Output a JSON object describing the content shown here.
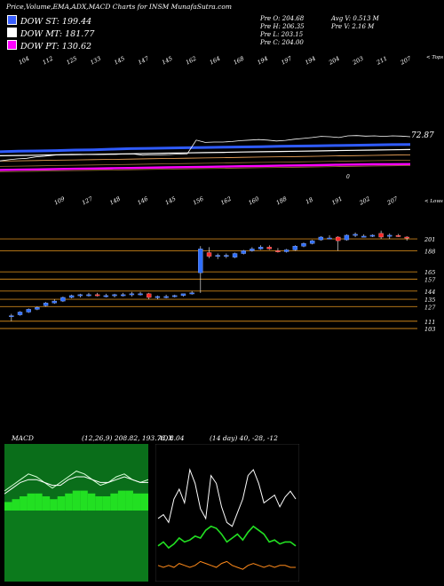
{
  "header": {
    "title": "Price,Volume,EMA,ADX,MACD Charts for INSM MunafaSutra.com"
  },
  "legend": [
    {
      "label": "DOW ST: 199.44",
      "color": "#3a5fff"
    },
    {
      "label": "DOW MT: 181.77",
      "color": "#ffffff"
    },
    {
      "label": "DOW PT: 130.62",
      "color": "#ff00ff"
    }
  ],
  "stats": {
    "prev_open": "Pre   O: 204.68",
    "prev_high": "Pre   H: 206.35",
    "prev_low": "Pre   L: 203.15",
    "prev_close": "Pre   C: 204.00",
    "avg_vol": "Avg V: 0.513  M",
    "prev_vol": "Pre   V: 2.16   M"
  },
  "colors": {
    "bull": "#2f6fff",
    "bear": "#ff2a2a",
    "ema_short": "#2f5bff",
    "ema_mid": "#ffffff",
    "ema_long": "#ff00ff",
    "level_line": "#c8821a",
    "macd_bg": "#0a6e1a",
    "macd_hist": "#22e022",
    "adx_line": "#ffffff",
    "di_plus": "#22e022",
    "di_minus": "#ff8a1a"
  },
  "chart_data": [
    {
      "type": "line",
      "title": "EMA",
      "top_labels": [
        "104",
        "112",
        "125",
        "133",
        "145",
        "147",
        "145",
        "162",
        "164",
        "168",
        "194",
        "197",
        "194",
        "204",
        "203",
        "211",
        "207"
      ],
      "top_corner": "< Tops",
      "value_label": "72.87",
      "marker": "0",
      "series": [
        {
          "name": "DOW ST",
          "values": [
            174,
            176,
            177,
            178,
            180,
            181,
            183,
            185,
            186,
            187,
            188,
            189,
            190,
            191,
            192,
            193,
            194,
            195,
            196,
            197,
            198,
            199,
            199.44
          ]
        },
        {
          "name": "DOW MT",
          "values": [
            160,
            161,
            162,
            163,
            164,
            165,
            166,
            167,
            168,
            169,
            170,
            171,
            172,
            173,
            174,
            175,
            176,
            177,
            178,
            179,
            180,
            181,
            181.77
          ]
        },
        {
          "name": "DOW PT",
          "values": [
            110,
            111,
            112,
            113,
            114,
            115,
            116,
            117,
            118,
            119,
            120,
            121,
            122,
            123,
            124,
            125,
            126,
            127,
            128,
            129,
            130,
            130.3,
            130.62
          ]
        }
      ]
    },
    {
      "type": "candlestick",
      "title": "Price",
      "bottom_labels": [
        "109",
        "127",
        "148",
        "146",
        "145",
        "156",
        "162",
        "160",
        "188",
        "18",
        "191",
        "202",
        "207"
      ],
      "bottom_corner": "< Lows",
      "price_levels": [
        "201",
        "188",
        "165",
        "157",
        "144",
        "135",
        "127",
        "111",
        "103"
      ],
      "candles": [
        {
          "o": 116,
          "h": 119,
          "l": 111,
          "c": 117
        },
        {
          "o": 118,
          "h": 122,
          "l": 117,
          "c": 121
        },
        {
          "o": 121,
          "h": 125,
          "l": 120,
          "c": 124
        },
        {
          "o": 124,
          "h": 127,
          "l": 123,
          "c": 126
        },
        {
          "o": 128,
          "h": 132,
          "l": 127,
          "c": 131
        },
        {
          "o": 131,
          "h": 135,
          "l": 130,
          "c": 133
        },
        {
          "o": 133,
          "h": 138,
          "l": 132,
          "c": 137
        },
        {
          "o": 137,
          "h": 140,
          "l": 136,
          "c": 139
        },
        {
          "o": 139,
          "h": 141,
          "l": 137,
          "c": 140
        },
        {
          "o": 140,
          "h": 142,
          "l": 138,
          "c": 140
        },
        {
          "o": 140,
          "h": 142,
          "l": 138,
          "c": 139
        },
        {
          "o": 139,
          "h": 141,
          "l": 137,
          "c": 139
        },
        {
          "o": 139,
          "h": 141,
          "l": 137,
          "c": 140
        },
        {
          "o": 140,
          "h": 142,
          "l": 138,
          "c": 140
        },
        {
          "o": 140,
          "h": 143,
          "l": 138,
          "c": 141
        },
        {
          "o": 141,
          "h": 143,
          "l": 139,
          "c": 141
        },
        {
          "o": 141,
          "h": 142,
          "l": 135,
          "c": 137
        },
        {
          "o": 137,
          "h": 139,
          "l": 135,
          "c": 138
        },
        {
          "o": 138,
          "h": 140,
          "l": 136,
          "c": 138
        },
        {
          "o": 138,
          "h": 140,
          "l": 137,
          "c": 139
        },
        {
          "o": 139,
          "h": 141,
          "l": 138,
          "c": 141
        },
        {
          "o": 141,
          "h": 144,
          "l": 140,
          "c": 142
        },
        {
          "o": 164,
          "h": 193,
          "l": 142,
          "c": 190
        },
        {
          "o": 186,
          "h": 192,
          "l": 180,
          "c": 182
        },
        {
          "o": 182,
          "h": 185,
          "l": 179,
          "c": 183
        },
        {
          "o": 183,
          "h": 185,
          "l": 180,
          "c": 183
        },
        {
          "o": 181,
          "h": 186,
          "l": 180,
          "c": 185
        },
        {
          "o": 185,
          "h": 189,
          "l": 184,
          "c": 188
        },
        {
          "o": 188,
          "h": 192,
          "l": 187,
          "c": 190
        },
        {
          "o": 190,
          "h": 194,
          "l": 189,
          "c": 192
        },
        {
          "o": 192,
          "h": 194,
          "l": 189,
          "c": 190
        },
        {
          "o": 188,
          "h": 191,
          "l": 186,
          "c": 187
        },
        {
          "o": 187,
          "h": 190,
          "l": 186,
          "c": 189
        },
        {
          "o": 189,
          "h": 194,
          "l": 188,
          "c": 193
        },
        {
          "o": 193,
          "h": 197,
          "l": 192,
          "c": 196
        },
        {
          "o": 196,
          "h": 200,
          "l": 195,
          "c": 199
        },
        {
          "o": 200,
          "h": 204,
          "l": 199,
          "c": 203
        },
        {
          "o": 202,
          "h": 205,
          "l": 201,
          "c": 202
        },
        {
          "o": 203,
          "h": 204,
          "l": 188,
          "c": 199
        },
        {
          "o": 200,
          "h": 206,
          "l": 199,
          "c": 205
        },
        {
          "o": 205,
          "h": 208,
          "l": 203,
          "c": 206
        },
        {
          "o": 204,
          "h": 206,
          "l": 203,
          "c": 204
        },
        {
          "o": 204,
          "h": 206,
          "l": 203,
          "c": 205
        },
        {
          "o": 207,
          "h": 210,
          "l": 201,
          "c": 203
        },
        {
          "o": 205,
          "h": 207,
          "l": 201,
          "c": 205
        },
        {
          "o": 204.68,
          "h": 206.35,
          "l": 203.15,
          "c": 204.0
        },
        {
          "o": 203,
          "h": 204,
          "l": 199,
          "c": 202
        }
      ]
    },
    {
      "type": "line",
      "title": "MACD",
      "label": "MACD",
      "params": "(12,26,9) 208.82, 193.78, 8.04",
      "series": [
        {
          "name": "MACD",
          "values": [
            5,
            7,
            9,
            11,
            10,
            8,
            6,
            8,
            10,
            12,
            11,
            9,
            7,
            8,
            10,
            11,
            9,
            8,
            9
          ]
        },
        {
          "name": "Signal",
          "values": [
            4,
            6,
            8,
            9,
            9,
            8,
            7,
            7,
            9,
            10,
            10,
            9,
            8,
            8,
            9,
            10,
            9,
            8,
            8
          ]
        }
      ],
      "histogram": [
        3,
        4,
        5,
        6,
        6,
        5,
        4,
        5,
        6,
        7,
        7,
        6,
        5,
        5,
        6,
        7,
        7,
        6,
        6
      ]
    },
    {
      "type": "line",
      "title": "ADX",
      "label": "ADX",
      "params": "(14 day) 40, -28, -12",
      "series": [
        {
          "name": "ADX",
          "values": [
            30,
            32,
            28,
            40,
            45,
            38,
            55,
            48,
            35,
            30,
            52,
            48,
            36,
            28,
            26,
            33,
            40,
            52,
            55,
            48,
            38,
            40,
            42,
            36,
            41,
            44,
            40
          ]
        },
        {
          "name": "+DI",
          "values": [
            16,
            18,
            15,
            17,
            20,
            18,
            19,
            21,
            20,
            24,
            26,
            25,
            22,
            18,
            20,
            22,
            19,
            23,
            26,
            24,
            22,
            18,
            19,
            17,
            18,
            18,
            16
          ]
        },
        {
          "name": "-DI",
          "values": [
            6,
            5,
            6,
            5,
            7,
            6,
            5,
            6,
            8,
            7,
            6,
            5,
            7,
            8,
            6,
            5,
            4,
            6,
            7,
            6,
            5,
            6,
            5,
            6,
            6,
            5,
            5
          ]
        }
      ]
    }
  ]
}
